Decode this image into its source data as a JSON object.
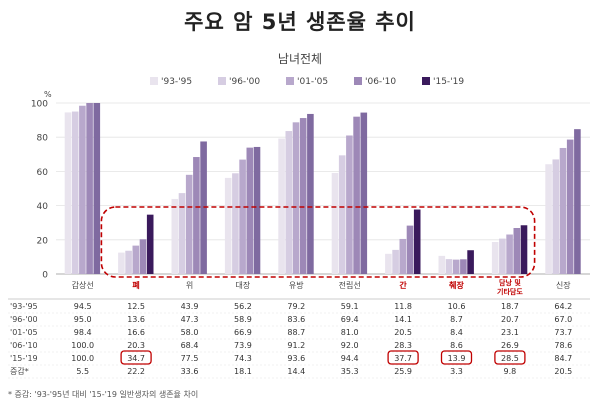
{
  "title": "주요 암 5년 생존율 추이",
  "subtitle": "남녀전체",
  "footnote": "* 증감: '93-'95년 대비 '15-'19 일반생자의 생존율 차이",
  "chart_data": {
    "type": "bar",
    "ylabel": "%",
    "ylim": [
      0,
      100
    ],
    "yticks": [
      0,
      20,
      40,
      60,
      80,
      100
    ],
    "categories": [
      "갑상선",
      "폐",
      "위",
      "대장",
      "유방",
      "전립선",
      "간",
      "췌장",
      "담낭 및 기타담도",
      "신장"
    ],
    "highlight_categories": [
      "폐",
      "간",
      "췌장",
      "담낭 및 기타담도"
    ],
    "highlight_color": "#c00000",
    "series": [
      {
        "name": "'93-'95",
        "color": "#e9e4ee",
        "values": [
          94.5,
          12.5,
          43.9,
          56.2,
          79.2,
          59.1,
          11.8,
          10.6,
          18.7,
          64.2
        ]
      },
      {
        "name": "'96-'00",
        "color": "#d6cde2",
        "values": [
          95.0,
          13.6,
          47.3,
          58.9,
          83.6,
          69.4,
          14.1,
          8.7,
          20.7,
          67.0
        ]
      },
      {
        "name": "'01-'05",
        "color": "#b8a8cc",
        "values": [
          98.4,
          16.6,
          58.0,
          66.9,
          88.7,
          81.0,
          20.5,
          8.4,
          23.1,
          73.7
        ]
      },
      {
        "name": "'06-'10",
        "color": "#9d88b7",
        "values": [
          100.0,
          20.3,
          68.4,
          73.9,
          91.2,
          92.0,
          28.3,
          8.6,
          26.9,
          78.6
        ]
      },
      {
        "name": "'15-'19",
        "color": "#7f6aa0",
        "values": [
          100.0,
          34.7,
          77.5,
          74.3,
          93.6,
          94.4,
          37.7,
          13.9,
          28.5,
          84.7
        ]
      }
    ],
    "highlight_series_color": "#3a1a5c",
    "change_row": {
      "label": "증감*",
      "values": [
        "5.5",
        "22.2",
        "33.6",
        "18.1",
        "14.4",
        "35.3",
        "25.9",
        "3.3",
        "9.8",
        "20.5"
      ]
    },
    "circled_cells": [
      [
        4,
        1
      ],
      [
        4,
        6
      ],
      [
        4,
        7
      ],
      [
        4,
        8
      ]
    ],
    "grid": true,
    "legend_position": "top"
  }
}
